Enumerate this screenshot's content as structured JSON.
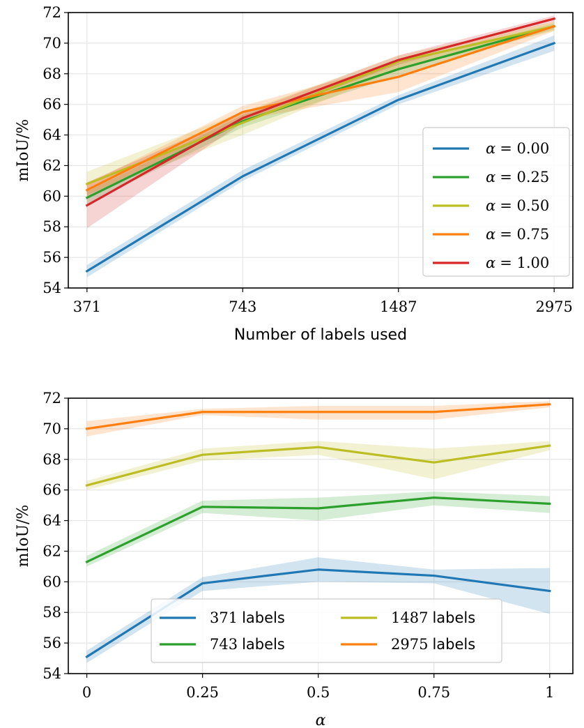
{
  "chart_data": [
    {
      "type": "line",
      "xlabel": "Number of labels used",
      "ylabel": "mIoU/%",
      "categories": [
        "371",
        "743",
        "1487",
        "2975"
      ],
      "ylim": [
        54,
        72
      ],
      "yticks": [
        54,
        56,
        58,
        60,
        62,
        64,
        66,
        68,
        70,
        72
      ],
      "grid": true,
      "legend_position": "bottom-right",
      "legend_columns": 1,
      "series": [
        {
          "name": "α = 0.00",
          "alpha_symbol": "α",
          "alpha_value": "= 0.00",
          "color": "#1f77b4",
          "values": [
            55.1,
            61.3,
            66.3,
            70.0
          ],
          "lower": [
            54.7,
            61.0,
            66.0,
            69.5
          ],
          "upper": [
            55.5,
            61.7,
            66.6,
            70.5
          ]
        },
        {
          "name": "α = 0.25",
          "alpha_symbol": "α",
          "alpha_value": "= 0.25",
          "color": "#2ca02c",
          "values": [
            59.9,
            64.9,
            68.3,
            71.1
          ],
          "lower": [
            59.5,
            64.5,
            67.9,
            70.9
          ],
          "upper": [
            60.3,
            65.3,
            68.7,
            71.3
          ]
        },
        {
          "name": "α = 0.50",
          "alpha_symbol": "α",
          "alpha_value": "= 0.50",
          "color": "#bcbd22",
          "values": [
            60.8,
            64.8,
            68.8,
            71.1
          ],
          "lower": [
            60.1,
            64.0,
            68.3,
            70.8
          ],
          "upper": [
            61.6,
            65.5,
            69.2,
            71.4
          ]
        },
        {
          "name": "α = 0.75",
          "alpha_symbol": "α",
          "alpha_value": "= 0.75",
          "color": "#ff7f0e",
          "values": [
            60.4,
            65.5,
            67.8,
            71.1
          ],
          "lower": [
            60.0,
            65.0,
            66.8,
            70.8
          ],
          "upper": [
            60.8,
            65.9,
            68.7,
            71.4
          ]
        },
        {
          "name": "α = 1.00",
          "alpha_symbol": "α",
          "alpha_value": "= 1.00",
          "color": "#d62728",
          "values": [
            59.4,
            65.1,
            68.9,
            71.6
          ],
          "lower": [
            57.9,
            64.8,
            68.6,
            71.4
          ],
          "upper": [
            60.9,
            65.4,
            69.2,
            71.8
          ]
        }
      ]
    },
    {
      "type": "line",
      "xlabel": "α",
      "ylabel": "mIoU/%",
      "x": [
        0,
        0.25,
        0.5,
        0.75,
        1
      ],
      "xticklabels": [
        "0",
        "0.25",
        "0.5",
        "0.75",
        "1"
      ],
      "xlim": [
        -0.04,
        1.05
      ],
      "ylim": [
        54,
        72
      ],
      "yticks": [
        54,
        56,
        58,
        60,
        62,
        64,
        66,
        68,
        70,
        72
      ],
      "grid": true,
      "legend_position": "bottom-center",
      "legend_columns": 2,
      "series": [
        {
          "name": "371 labels",
          "number": "371",
          "unit": "labels",
          "color": "#1f77b4",
          "values": [
            55.1,
            59.9,
            60.8,
            60.4,
            59.4
          ],
          "lower": [
            54.7,
            59.4,
            60.0,
            59.9,
            57.9
          ],
          "upper": [
            55.5,
            60.3,
            61.6,
            60.8,
            60.9
          ]
        },
        {
          "name": "743 labels",
          "number": "743",
          "unit": "labels",
          "color": "#2ca02c",
          "values": [
            61.3,
            64.9,
            64.8,
            65.5,
            65.1
          ],
          "lower": [
            61.0,
            64.5,
            64.0,
            65.0,
            64.5
          ],
          "upper": [
            61.7,
            65.3,
            65.5,
            65.9,
            65.6
          ]
        },
        {
          "name": "1487 labels",
          "number": "1487",
          "unit": "labels",
          "color": "#bcbd22",
          "values": [
            66.3,
            68.3,
            68.8,
            67.8,
            68.9
          ],
          "lower": [
            66.0,
            67.9,
            68.3,
            66.7,
            68.6
          ],
          "upper": [
            66.6,
            68.7,
            69.2,
            68.7,
            69.2
          ]
        },
        {
          "name": "2975 labels",
          "number": "2975",
          "unit": "labels",
          "color": "#ff7f0e",
          "values": [
            70.0,
            71.1,
            71.1,
            71.1,
            71.6
          ],
          "lower": [
            69.5,
            70.9,
            70.6,
            70.6,
            71.4
          ],
          "upper": [
            70.5,
            71.3,
            71.5,
            71.5,
            71.8
          ]
        }
      ]
    }
  ]
}
